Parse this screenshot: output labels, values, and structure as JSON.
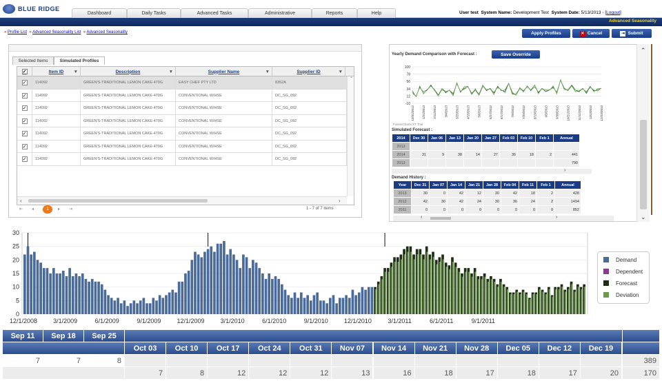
{
  "header": {
    "logo_text": "BLUE RIDGE",
    "nav_tabs": [
      "Dashboard",
      "Daily Tasks",
      "Advanced Tasks",
      "Administrative",
      "Reports",
      "Help"
    ],
    "user_label": "User test",
    "system_name_label": "System Name:",
    "system_name_value": "Development Test",
    "system_date_label": "System Date:",
    "system_date_value": "5/13/2013 - [",
    "logout_label": "Logout",
    "logout_close": "]",
    "page_name": "Advanced Seasonality"
  },
  "breadcrumb": [
    "Profile List",
    "Advanced Seasonality List",
    "Advanced Seasonality"
  ],
  "breadcrumb_sep": "»",
  "actions": {
    "apply_profiles": "Apply Profiles",
    "cancel": "Cancel",
    "submit": "Submit"
  },
  "subtabs": [
    "Selected Items",
    "Simulated Profiles"
  ],
  "grid": {
    "columns": [
      "Item ID",
      "Description",
      "Supplier Name",
      "Supplier ID"
    ],
    "rows": [
      {
        "item_id": "114092",
        "description": "GREEN'S-TRADITIONAL LEMON CAKE-470G",
        "supplier_name": "EASY CHEF PTY LTD",
        "supplier_id": "8352A"
      },
      {
        "item_id": "114092",
        "description": "GREEN'S-TRADITIONAL LEMON CAKE-470G",
        "supplier_name": "CONVENTIONAL W/HSE",
        "supplier_id": "DC_SG_092"
      },
      {
        "item_id": "114092",
        "description": "GREEN'S-TRADITIONAL LEMON CAKE-470G",
        "supplier_name": "CONVENTIONAL W/HSE",
        "supplier_id": "DC_SG_092"
      },
      {
        "item_id": "114092",
        "description": "GREEN'S-TRADITIONAL LEMON CAKE-470G",
        "supplier_name": "CONVENTIONAL W/HSE",
        "supplier_id": "DC_SG_092"
      },
      {
        "item_id": "114092",
        "description": "GREEN'S-TRADITIONAL LEMON CAKE-470G",
        "supplier_name": "CONVENTIONAL W/HSE",
        "supplier_id": "DC_SG_092"
      },
      {
        "item_id": "114092",
        "description": "GREEN'S-TRADITIONAL LEMON CAKE-470G",
        "supplier_name": "CONVENTIONAL W/HSE",
        "supplier_id": "DC_SG_092"
      },
      {
        "item_id": "114092",
        "description": "GREEN'S-TRADITIONAL LEMON CAKE-470G",
        "supplier_name": "CONVENTIONAL W/HSE",
        "supplier_id": "DC_SG_092"
      }
    ],
    "pager_current": "1",
    "pager_summary": "1 - 7 of 7 items"
  },
  "right": {
    "yearly_label": "Yearly Demand Comparison with Forecast :",
    "save_override": "Save Override",
    "mini_chart_yticks": [
      "100",
      "78",
      "56",
      "34",
      "12",
      "-10"
    ],
    "mini_chart_xticks": [
      "12/31/2012",
      "1/21/2013",
      "2/11/2013",
      "3/4/2013",
      "3/25/2013",
      "4/15/2013",
      "5/6/2013",
      "5/27/2013",
      "6/17/2013",
      "7/8/2013",
      "7/29/2013",
      "8/19/2013",
      "9/9/2013",
      "9/30/2013",
      "10/21/2013",
      "11/11/2013",
      "12/2/2013",
      "12/23/2013"
    ],
    "mini_chart_trial": "FusionCharts XT Trial",
    "simulated_label": "Simulated Forecast :",
    "sim_headers": [
      "2014",
      "Dec 30",
      "Jan 06",
      "Jan 13",
      "Jan 20",
      "Jan 27",
      "Feb 03",
      "Feb 10",
      "Feb 1",
      "Annual"
    ],
    "sim_rows": [
      {
        "year": "2013",
        "cells": [
          "",
          "",
          "",
          "",
          "",
          "",
          "",
          "",
          ""
        ]
      },
      {
        "year": "2014",
        "cells": [
          "31",
          "9",
          "38",
          "14",
          "27",
          "36",
          "18",
          "2",
          "441"
        ]
      },
      {
        "year": "2013",
        "cells": [
          "",
          "",
          "",
          "",
          "",
          "",
          "",
          "",
          "790"
        ]
      }
    ],
    "history_label": "Demand History :",
    "hist_headers": [
      "Year",
      "Dec 31",
      "Jan 07",
      "Jan 14",
      "Jan 21",
      "Jan 28",
      "Feb 04",
      "Feb 11",
      "Feb 1",
      "Annual"
    ],
    "hist_rows": [
      {
        "year": "2013",
        "cells": [
          "30",
          "0",
          "42",
          "12",
          "30",
          "42",
          "18",
          "2",
          "428"
        ]
      },
      {
        "year": "2012",
        "cells": [
          "42",
          "30",
          "42",
          "24",
          "30",
          "36",
          "24",
          "2",
          "1494"
        ]
      },
      {
        "year": "2011",
        "cells": [
          "0",
          "0",
          "0",
          "0",
          "0",
          "0",
          "0",
          "0",
          "852"
        ]
      }
    ]
  },
  "chart_data": {
    "type": "bar",
    "ylim": [
      0,
      30
    ],
    "yticks": [
      0,
      5,
      10,
      15,
      20,
      25,
      30
    ],
    "xtick_labels": [
      "12/1/2008",
      "3/1/2009",
      "6/1/2009",
      "9/1/2009",
      "12/1/2009",
      "3/1/2010",
      "6/1/2010",
      "9/1/2010",
      "12/1/2010",
      "3/1/2011",
      "6/1/2011",
      "9/1/2011"
    ],
    "legend": [
      "Demand",
      "Dependent",
      "Forecast",
      "Deviation"
    ],
    "colors": {
      "Demand": "#4a6b9a",
      "Dependent": "#8b3a8b",
      "Forecast": "#1e2e14",
      "Deviation": "#6a9a4a"
    },
    "series": [
      {
        "name": "Demand",
        "values": [
          22,
          25,
          22,
          23,
          20,
          19,
          17,
          17,
          15,
          17,
          15,
          15,
          16,
          14,
          17,
          14,
          15,
          14,
          15,
          13,
          12,
          13,
          12,
          12,
          11,
          9,
          7,
          6,
          5,
          6,
          4,
          5,
          3,
          4,
          5,
          4,
          5,
          6,
          4,
          4,
          6,
          5,
          7,
          6,
          7,
          8,
          9,
          8,
          12,
          12,
          15,
          16,
          20,
          23,
          22,
          21,
          23,
          24,
          25,
          23,
          26,
          26,
          27,
          22,
          24,
          22,
          20,
          17,
          22,
          21,
          17,
          20,
          19,
          17,
          15,
          13,
          15,
          13,
          14,
          13,
          11,
          9,
          7,
          6,
          8,
          6,
          8,
          6,
          7,
          5,
          7,
          8,
          5,
          5,
          4,
          6,
          7,
          4,
          6,
          6,
          7,
          6,
          9,
          7,
          8,
          10,
          9,
          10,
          10
        ]
      },
      {
        "name": "Forecast",
        "values": [
          10,
          12,
          14,
          17,
          17,
          19,
          21,
          21,
          22,
          24,
          25,
          25,
          22,
          24,
          24,
          22,
          25,
          22,
          23,
          20,
          21,
          22,
          19,
          18,
          21,
          19,
          17,
          15,
          17,
          17,
          15,
          17,
          14,
          14,
          15,
          13,
          14,
          13,
          11,
          13,
          11,
          10,
          8,
          8,
          9,
          8,
          9,
          8,
          6,
          8,
          8,
          10,
          9,
          8,
          10,
          7,
          10,
          10,
          11,
          9,
          10,
          12,
          9,
          11,
          10,
          11
        ]
      },
      {
        "name": "Deviation",
        "values": [
          10,
          12,
          14,
          17,
          17,
          19,
          21,
          21,
          22,
          24,
          25,
          25,
          22,
          24,
          24,
          22,
          25,
          22,
          23,
          20,
          21,
          22,
          19,
          18,
          21,
          19,
          17,
          15,
          17,
          17,
          15,
          17,
          14,
          14,
          15,
          13,
          14,
          13,
          11,
          13,
          11,
          10,
          8,
          8,
          9,
          8,
          9,
          8,
          6,
          8,
          8,
          10,
          9,
          8,
          10,
          7,
          10,
          10,
          11,
          9,
          10,
          12,
          9,
          11,
          10,
          11
        ]
      }
    ],
    "peaks": [
      30,
      30,
      30
    ]
  },
  "bottom": {
    "top_headers": [
      "Sep 11",
      "Sep 18",
      "Sep 25"
    ],
    "top_values": [
      "7",
      "7",
      "8"
    ],
    "headers": [
      "Oct 03",
      "Oct 10",
      "Oct 17",
      "Oct 24",
      "Oct 31",
      "Nov 07",
      "Nov 14",
      "Nov 21",
      "Nov 28",
      "Dec 05",
      "Dec 12",
      "Dec 19"
    ],
    "values": [
      "7",
      "8",
      "12",
      "12",
      "12",
      "13",
      "16",
      "18",
      "17",
      "18",
      "17",
      "20"
    ],
    "annual_1": "389",
    "annual_2": "170"
  }
}
